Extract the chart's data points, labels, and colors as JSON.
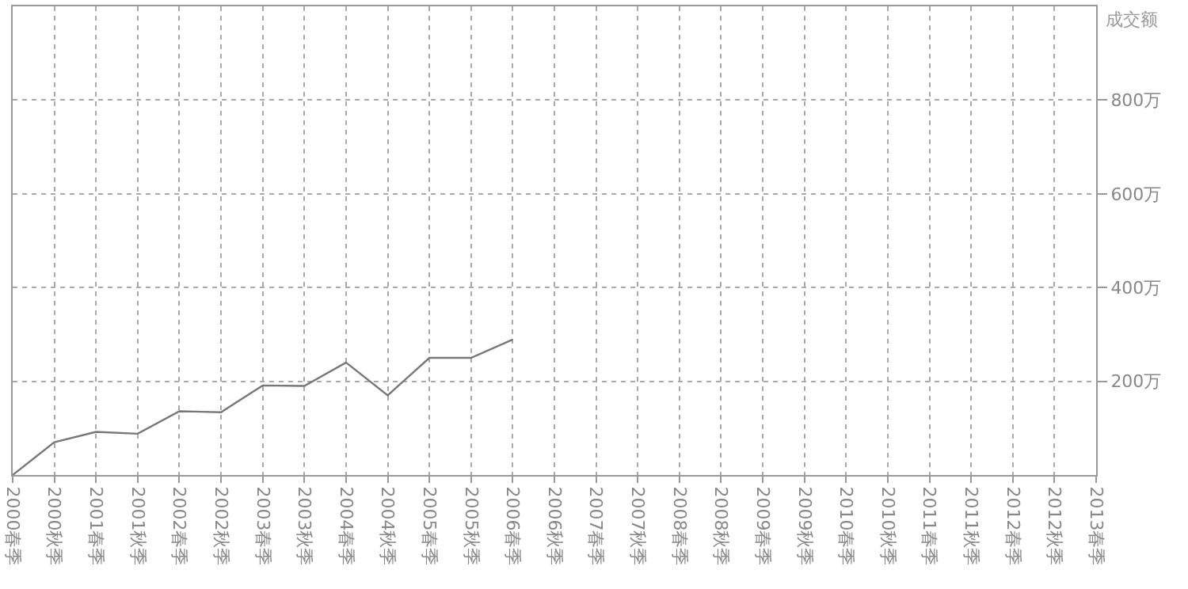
{
  "chart_data": {
    "type": "line",
    "ylabel": "成交额",
    "categories": [
      "2000春季",
      "2000秋季",
      "2001春季",
      "2001秋季",
      "2002春季",
      "2002秋季",
      "2003春季",
      "2003秋季",
      "2004春季",
      "2004秋季",
      "2005春季",
      "2005秋季",
      "2006春季",
      "2006秋季",
      "2007春季",
      "2007秋季",
      "2008春季",
      "2008秋季",
      "2009春季",
      "2009秋季",
      "2010春季",
      "2010秋季",
      "2011春季",
      "2011秋季",
      "2012春季",
      "2012秋季",
      "2013春季"
    ],
    "series": [
      {
        "color": "#777777",
        "values": [
          0,
          70,
          92,
          88,
          136,
          134,
          191,
          190,
          240,
          170,
          250,
          250,
          289,
          null,
          null,
          null,
          null,
          null,
          null,
          null,
          null,
          null,
          null,
          null,
          null,
          null,
          null
        ]
      }
    ],
    "ylim": [
      0,
      1000
    ],
    "yticks": [
      {
        "value": 200,
        "label": "200万"
      },
      {
        "value": 400,
        "label": "400万"
      },
      {
        "value": 600,
        "label": "600万"
      },
      {
        "value": 800,
        "label": "800万"
      }
    ],
    "grid": true,
    "marker": "none",
    "line_style": "solid"
  }
}
